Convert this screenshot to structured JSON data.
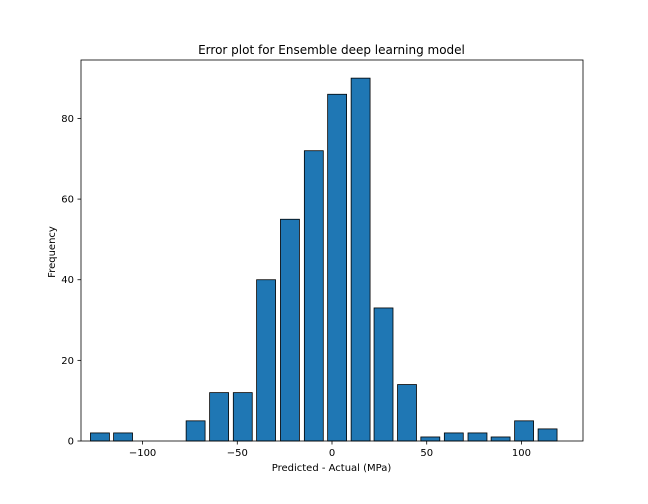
{
  "chart_data": {
    "type": "bar",
    "title": "Error plot for Ensemble deep learning model",
    "xlabel": "Predicted - Actual (MPa)",
    "ylabel": "Frequency",
    "xlim": [
      -132.5,
      132.5
    ],
    "ylim": [
      0,
      94.5
    ],
    "bar_width": 10.0,
    "bar_color": "#1f77b4",
    "edge_color": "#000000",
    "grid": false,
    "x": [
      -122.5,
      -110.3,
      -97.4,
      -84.5,
      -72.0,
      -59.6,
      -47.1,
      -34.8,
      -22.2,
      -9.6,
      2.7,
      15.1,
      27.2,
      39.6,
      51.9,
      64.3,
      76.8,
      89.0,
      101.4,
      113.8
    ],
    "values": [
      2,
      2,
      0,
      0,
      5,
      12,
      12,
      40,
      55,
      72,
      86,
      90,
      33,
      14,
      1,
      2,
      2,
      1,
      5,
      3
    ],
    "x_ticks": [
      -100,
      -50,
      0,
      50,
      100
    ],
    "x_tick_labels": [
      "−100",
      "−50",
      "0",
      "50",
      "100"
    ],
    "y_ticks": [
      0,
      20,
      40,
      60,
      80
    ],
    "y_tick_labels": [
      "0",
      "20",
      "40",
      "60",
      "80"
    ]
  }
}
